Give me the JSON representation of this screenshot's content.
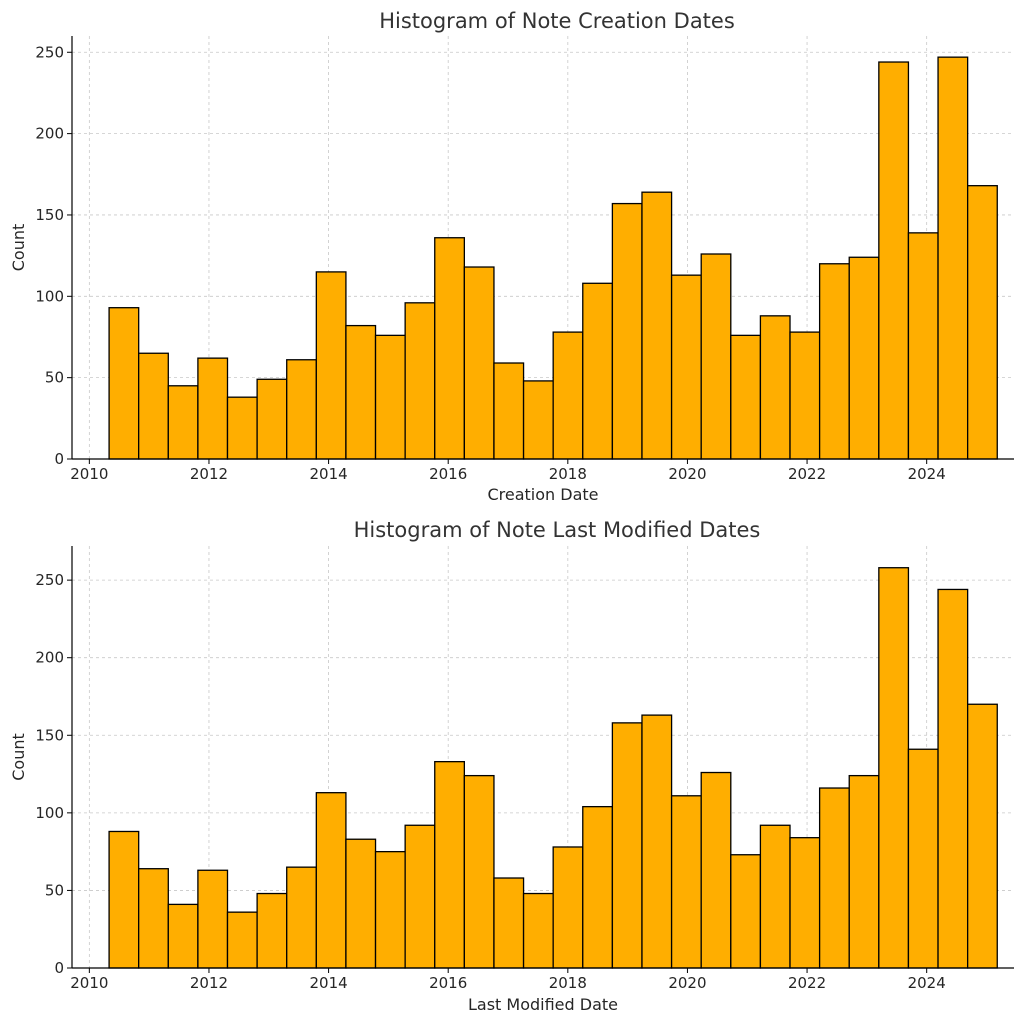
{
  "colors": {
    "bar_fill": "#FFAE00",
    "bar_edge": "#000000"
  },
  "chart_data": [
    {
      "type": "bar",
      "title": "Histogram of Note Creation Dates",
      "xlabel": "Creation Date",
      "ylabel": "Count",
      "xlim": [
        2009.71,
        2025.46
      ],
      "ylim": [
        0,
        260
      ],
      "xticks": [
        2010,
        2012,
        2014,
        2016,
        2018,
        2020,
        2022,
        2024
      ],
      "yticks": [
        0,
        50,
        100,
        150,
        200,
        250
      ],
      "bin_start": 2010.33,
      "bin_width": 0.495,
      "values": [
        93,
        65,
        45,
        62,
        38,
        49,
        61,
        115,
        82,
        76,
        96,
        136,
        118,
        59,
        48,
        78,
        108,
        157,
        164,
        113,
        126,
        76,
        88,
        78,
        120,
        124,
        244,
        139,
        247,
        168
      ],
      "grid": true
    },
    {
      "type": "bar",
      "title": "Histogram of Note Last Modified Dates",
      "xlabel": "Last Modified Date",
      "ylabel": "Count",
      "xlim": [
        2009.71,
        2025.46
      ],
      "ylim": [
        0,
        272
      ],
      "xticks": [
        2010,
        2012,
        2014,
        2016,
        2018,
        2020,
        2022,
        2024
      ],
      "yticks": [
        0,
        50,
        100,
        150,
        200,
        250
      ],
      "bin_start": 2010.33,
      "bin_width": 0.495,
      "values": [
        88,
        64,
        41,
        63,
        36,
        48,
        65,
        113,
        83,
        75,
        92,
        133,
        124,
        58,
        48,
        78,
        104,
        158,
        163,
        111,
        126,
        73,
        92,
        84,
        116,
        124,
        258,
        141,
        244,
        170
      ],
      "grid": true
    }
  ]
}
